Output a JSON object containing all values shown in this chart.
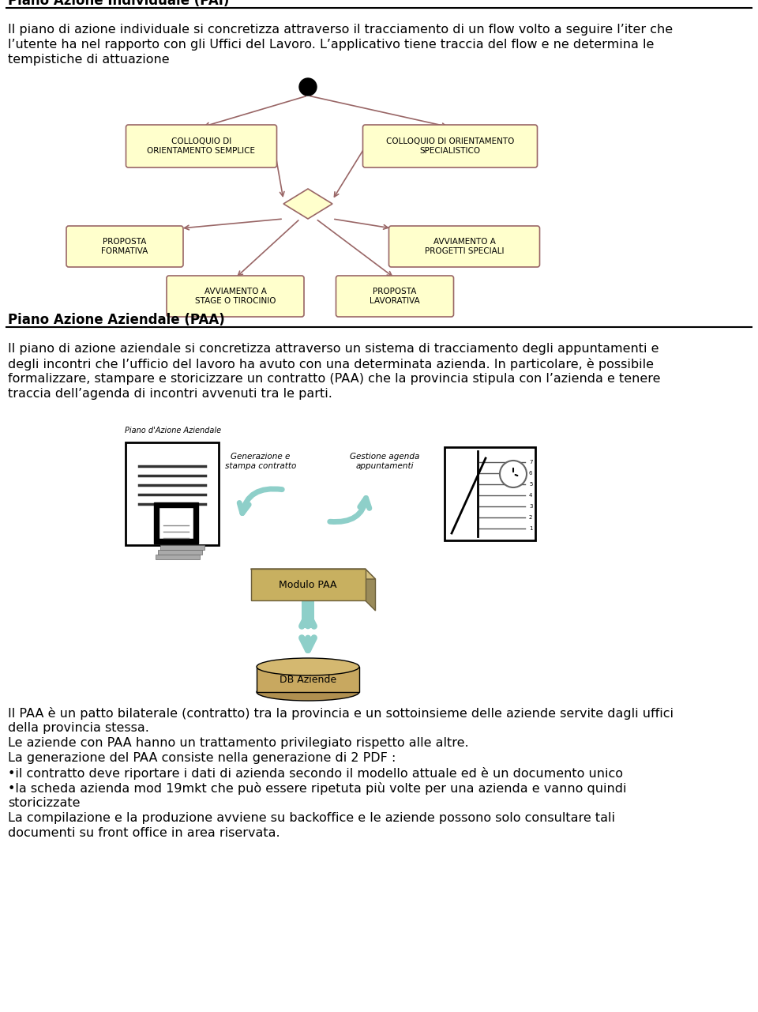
{
  "title_pai": "Piano Azione Individuale (PAI)",
  "text_pai_line1": "Il piano di azione individuale si concretizza attraverso il tracciamento di un flow volto a seguire l’iter che",
  "text_pai_line2": "l’utente ha nel rapporto con gli Uffici del Lavoro. L’applicativo tiene traccia del flow e ne determina le",
  "text_pai_line3": "tempistiche di attuazione",
  "title_paa": "Piano Azione Aziendale (PAA)",
  "text_paa_line1": "Il piano di azione aziendale si concretizza attraverso un sistema di tracciamento degli appuntamenti e",
  "text_paa_line2": "degli incontri che l’ufficio del lavoro ha avuto con una determinata azienda. In particolare, è possibile",
  "text_paa_line3": "formalizzare, stampare e storicizzare un contratto (PAA) che la provincia stipula con l’azienda e tenere",
  "text_paa_line4": "traccia dell’agenda di incontri avvenuti tra le parti.",
  "text_paa2_line1": "Il PAA è un patto bilaterale (contratto) tra la provincia e un sottoinsieme delle aziende servite dagli uffici",
  "text_paa2_line2": "della provincia stessa.",
  "text_paa2_line3": "Le aziende con PAA hanno un trattamento privilegiato rispetto alle altre.",
  "text_paa2_line4": "La generazione del PAA consiste nella generazione di 2 PDF :",
  "text_paa2_line5": "•il contratto deve riportare i dati di azienda secondo il modello attuale ed è un documento unico",
  "text_paa2_line6": "•la scheda azienda mod 19mkt che può essere ripetuta più volte per una azienda e vanno quindi",
  "text_paa2_line7": "storicizzate",
  "text_paa2_line8": "La compilazione e la produzione avviene su backoffice e le aziende possono solo consultare tali",
  "text_paa2_line9": "documenti su front office in area riservata.",
  "node_color": "#FFFFCC",
  "node_border": "#996666",
  "diamond_color": "#FFFFCC",
  "diamond_border": "#996666",
  "arrow_color": "#996666",
  "bg_color": "#FFFFFF",
  "teal_color": "#8ECFC9",
  "font_size_body": 11.5,
  "font_size_title": 12
}
